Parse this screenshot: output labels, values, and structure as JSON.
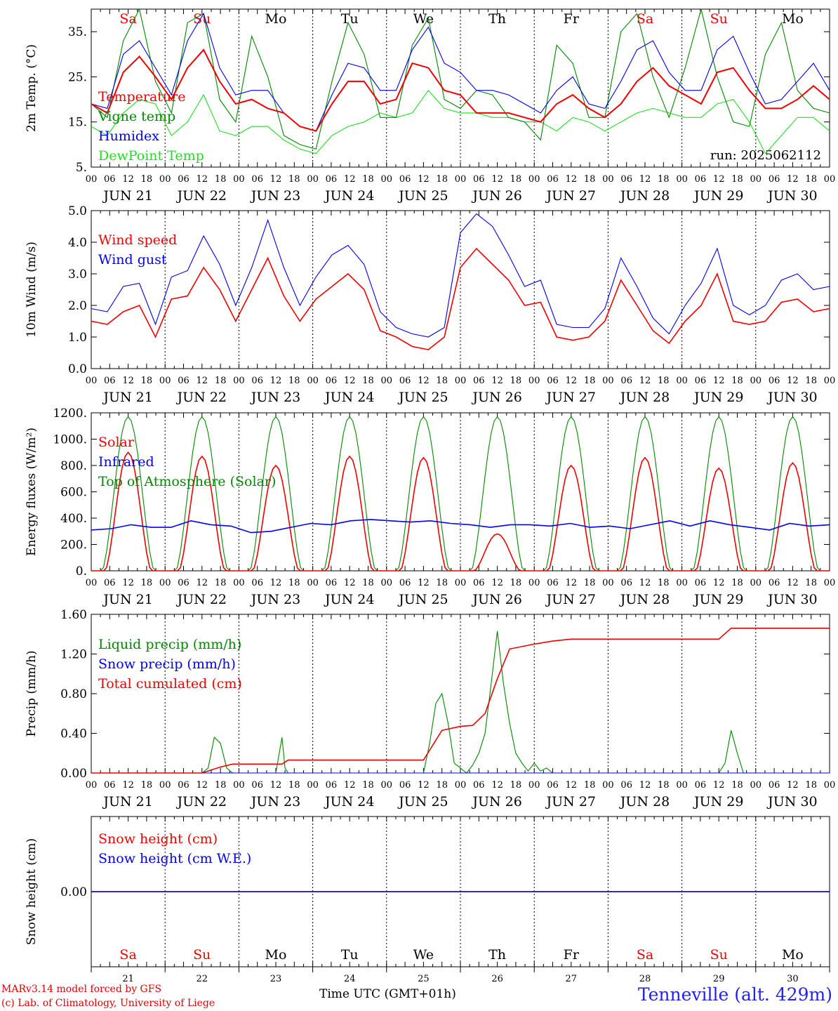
{
  "run_label": "run: 2025062112",
  "hour_ticks": [
    "00",
    "06",
    "12",
    "18"
  ],
  "days": [
    {
      "date": "JUN 21",
      "dow": "Sa",
      "num": "21",
      "weekend": true
    },
    {
      "date": "JUN 22",
      "dow": "Su",
      "num": "22",
      "weekend": true
    },
    {
      "date": "JUN 23",
      "dow": "Mo",
      "num": "23",
      "weekend": false
    },
    {
      "date": "JUN 24",
      "dow": "Tu",
      "num": "24",
      "weekend": false
    },
    {
      "date": "JUN 25",
      "dow": "We",
      "num": "25",
      "weekend": false
    },
    {
      "date": "JUN 26",
      "dow": "Th",
      "num": "26",
      "weekend": false
    },
    {
      "date": "JUN 27",
      "dow": "Fr",
      "num": "27",
      "weekend": false
    },
    {
      "date": "JUN 28",
      "dow": "Sa",
      "num": "28",
      "weekend": true
    },
    {
      "date": "JUN 29",
      "dow": "Su",
      "num": "29",
      "weekend": true
    },
    {
      "date": "JUN 30",
      "dow": "Mo",
      "num": "30",
      "weekend": false
    }
  ],
  "colors": {
    "red": "#ee0000",
    "green": "#008800",
    "blue": "#0000ee",
    "lime": "#22dd22",
    "weekend": "#ee0000",
    "weekday": "#000000"
  },
  "footer": {
    "model": "MARv3.14 model forced by GFS",
    "lab": "(c) Lab. of Climatology, University of Liege",
    "axis": "Time UTC (GMT+01h)",
    "station": "Tenneville (alt. 429m)"
  },
  "chart_data": [
    {
      "type": "line",
      "ylabel": "2m Temp. (°C)",
      "ylim": [
        5,
        40
      ],
      "yticks": [
        5,
        15,
        25,
        35
      ],
      "ytick_labels": [
        "5.",
        "15.",
        "25.",
        "35."
      ],
      "x": "hours since JUN 21 00 UTC, step 6",
      "series": [
        {
          "name": "Temperature",
          "color": "red",
          "values": [
            19,
            17,
            26,
            29.5,
            25,
            20,
            27,
            31,
            24,
            19,
            20,
            18,
            17,
            14,
            13,
            19,
            24,
            24,
            19,
            20,
            28,
            27,
            22,
            21,
            17,
            17,
            17,
            16,
            15,
            19,
            21,
            18,
            16,
            19,
            24,
            27,
            23,
            21,
            19,
            26,
            27,
            22,
            18,
            18,
            20,
            23,
            20
          ]
        },
        {
          "name": "Vigne temp",
          "color": "green",
          "values": [
            19,
            16,
            33,
            40,
            24,
            17,
            37,
            39,
            20,
            15,
            34,
            25,
            12,
            10,
            9,
            24,
            37,
            30,
            16,
            16,
            32,
            38,
            20,
            18,
            22,
            21,
            16,
            15,
            11,
            32,
            28,
            16,
            16,
            35,
            39,
            25,
            16,
            27,
            40,
            25,
            15,
            14,
            30,
            37,
            22,
            18,
            17
          ]
        },
        {
          "name": "Humidex",
          "color": "blue",
          "values": [
            19,
            18,
            30,
            33,
            27,
            21,
            33,
            39,
            27,
            21,
            22,
            22,
            17,
            14,
            13,
            21,
            28,
            27,
            22,
            22,
            31,
            36,
            28,
            26,
            22,
            22,
            21,
            19,
            17,
            22,
            25,
            19,
            18,
            24,
            31,
            33,
            26,
            22,
            22,
            31,
            34,
            26,
            19,
            20,
            24,
            28,
            22
          ]
        },
        {
          "name": "DewPoint Temp",
          "color": "lime",
          "values": [
            14,
            12,
            17,
            20,
            19,
            12,
            15,
            21,
            13,
            12,
            14,
            14,
            11,
            9,
            8,
            12,
            14,
            15,
            17,
            16,
            17,
            22,
            18,
            17,
            17,
            16,
            16,
            15,
            15,
            13,
            16,
            15,
            13,
            15,
            17,
            18,
            17,
            16,
            16,
            19,
            20,
            15,
            8,
            12,
            16,
            16,
            13
          ]
        }
      ]
    },
    {
      "type": "line",
      "ylabel": "10m Wind (m/s)",
      "ylim": [
        0,
        5
      ],
      "yticks": [
        0,
        1,
        2,
        3,
        4,
        5
      ],
      "ytick_labels": [
        "0.0",
        "1.0",
        "2.0",
        "3.0",
        "4.0",
        "5.0"
      ],
      "series": [
        {
          "name": "Wind speed",
          "color": "red",
          "values": [
            1.5,
            1.4,
            1.8,
            2.0,
            1.0,
            2.2,
            2.3,
            3.2,
            2.5,
            1.5,
            2.5,
            3.5,
            2.3,
            1.5,
            2.2,
            2.6,
            3.0,
            2.5,
            1.2,
            1.0,
            0.7,
            0.6,
            1.0,
            3.2,
            3.8,
            3.3,
            2.8,
            2.0,
            2.1,
            1.0,
            0.9,
            1.0,
            1.5,
            2.8,
            2.0,
            1.2,
            0.8,
            1.5,
            2.0,
            3.0,
            1.5,
            1.4,
            1.5,
            2.1,
            2.2,
            1.8,
            1.9
          ]
        },
        {
          "name": "Wind gust",
          "color": "blue",
          "values": [
            1.9,
            1.8,
            2.6,
            2.7,
            1.4,
            2.9,
            3.1,
            4.2,
            3.3,
            2.0,
            3.2,
            4.7,
            3.2,
            2.0,
            2.9,
            3.6,
            3.9,
            3.3,
            1.8,
            1.3,
            1.1,
            1.0,
            1.3,
            4.3,
            4.9,
            4.5,
            3.6,
            2.6,
            2.8,
            1.4,
            1.3,
            1.3,
            1.9,
            3.5,
            2.6,
            1.6,
            1.1,
            2.0,
            2.7,
            3.8,
            2.0,
            1.7,
            2.0,
            2.8,
            3.0,
            2.5,
            2.6
          ]
        }
      ]
    },
    {
      "type": "line",
      "ylabel": "Energy fluxes (W/m²)",
      "ylim": [
        0,
        1200
      ],
      "yticks": [
        0,
        200,
        400,
        600,
        800,
        1000,
        1200
      ],
      "ytick_labels": [
        "0.",
        "200.",
        "400.",
        "600.",
        "800.",
        "1000.",
        "1200."
      ],
      "series": [
        {
          "name": "Solar",
          "color": "red",
          "daily_peak": [
            900,
            870,
            800,
            870,
            860,
            280,
            800,
            860,
            780,
            820
          ]
        },
        {
          "name": "Infrared",
          "color": "blue",
          "values": [
            310,
            320,
            350,
            330,
            330,
            380,
            350,
            340,
            290,
            300,
            330,
            360,
            350,
            380,
            390,
            380,
            370,
            380,
            360,
            350,
            330,
            350,
            350,
            340,
            360,
            330,
            340,
            320,
            350,
            380,
            340,
            380,
            350,
            330,
            310,
            360,
            340,
            350
          ]
        },
        {
          "name": "Top of Atmosphere (Solar)",
          "color": "green",
          "daily_peak": [
            1170,
            1170,
            1170,
            1170,
            1170,
            1170,
            1170,
            1170,
            1170,
            1170
          ]
        }
      ]
    },
    {
      "type": "line",
      "ylabel": "Precip (mm/h)",
      "ylim": [
        0,
        1.6
      ],
      "yticks": [
        0,
        0.4,
        0.8,
        1.2,
        1.6
      ],
      "ytick_labels": [
        "0.00",
        "0.40",
        "0.80",
        "1.20",
        "1.60"
      ],
      "series": [
        {
          "name": "Liquid precip (mm/h)",
          "color": "green",
          "points": [
            [
              0,
              0
            ],
            [
              36,
              0
            ],
            [
              38,
              0.05
            ],
            [
              40,
              0.36
            ],
            [
              42,
              0.3
            ],
            [
              44,
              0.05
            ],
            [
              46,
              0
            ],
            [
              60,
              0
            ],
            [
              62,
              0.36
            ],
            [
              63,
              0.05
            ],
            [
              64,
              0
            ],
            [
              108,
              0
            ],
            [
              110,
              0.3
            ],
            [
              112,
              0.7
            ],
            [
              114,
              0.8
            ],
            [
              116,
              0.5
            ],
            [
              118,
              0.1
            ],
            [
              120,
              0.05
            ],
            [
              122,
              0
            ],
            [
              124,
              0.08
            ],
            [
              126,
              0.2
            ],
            [
              128,
              0.4
            ],
            [
              130,
              0.9
            ],
            [
              132,
              1.43
            ],
            [
              134,
              0.9
            ],
            [
              136,
              0.5
            ],
            [
              138,
              0.2
            ],
            [
              140,
              0.1
            ],
            [
              142,
              0.02
            ],
            [
              144,
              0.1
            ],
            [
              146,
              0.02
            ],
            [
              148,
              0.05
            ],
            [
              150,
              0
            ],
            [
              204,
              0
            ],
            [
              206,
              0.1
            ],
            [
              208,
              0.43
            ],
            [
              210,
              0.2
            ],
            [
              212,
              0
            ],
            [
              240,
              0
            ]
          ]
        },
        {
          "name": "Snow precip (mm/h)",
          "color": "blue",
          "points": [
            [
              0,
              0
            ],
            [
              240,
              0
            ]
          ]
        },
        {
          "name": "Total cumulated (cm)",
          "color": "red",
          "points": [
            [
              0,
              0
            ],
            [
              36,
              0
            ],
            [
              42,
              0.06
            ],
            [
              46,
              0.09
            ],
            [
              62,
              0.09
            ],
            [
              64,
              0.13
            ],
            [
              108,
              0.13
            ],
            [
              114,
              0.43
            ],
            [
              120,
              0.47
            ],
            [
              124,
              0.48
            ],
            [
              128,
              0.6
            ],
            [
              132,
              0.95
            ],
            [
              136,
              1.25
            ],
            [
              144,
              1.3
            ],
            [
              150,
              1.33
            ],
            [
              156,
              1.35
            ],
            [
              204,
              1.35
            ],
            [
              208,
              1.46
            ],
            [
              240,
              1.46
            ]
          ]
        }
      ]
    },
    {
      "type": "line",
      "ylabel": "Snow height (cm)",
      "ytick_labels": [
        "0.00"
      ],
      "series": [
        {
          "name": "Snow height (cm)",
          "color": "red",
          "points": [
            [
              0,
              0
            ],
            [
              240,
              0
            ]
          ]
        },
        {
          "name": "Snow height (cm W.E.)",
          "color": "blue",
          "points": [
            [
              0,
              0
            ],
            [
              240,
              0
            ]
          ]
        }
      ]
    }
  ]
}
